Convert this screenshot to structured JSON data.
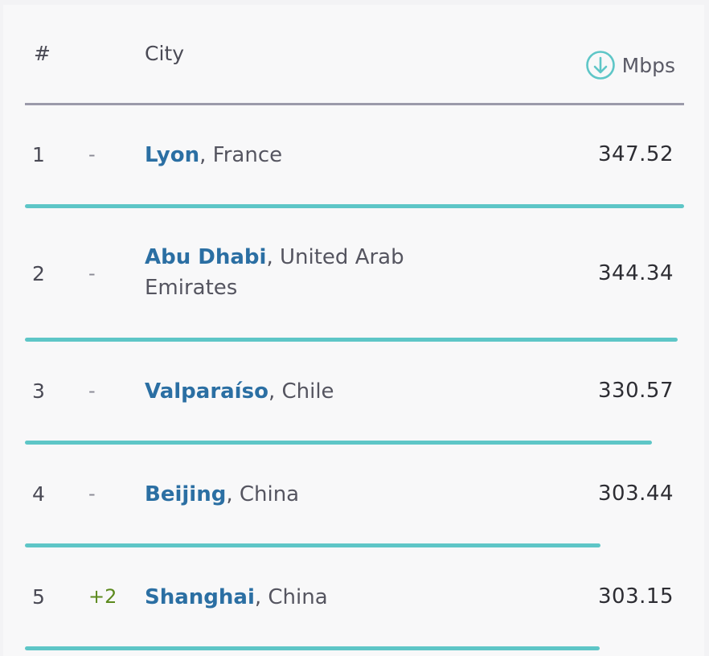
{
  "header": {
    "rank": "#",
    "city": "City",
    "speed_unit": "Mbps",
    "speed_icon": "download-arrow-icon"
  },
  "colors": {
    "bar": "#5ec6c7",
    "city_link": "#2b6fa3",
    "change_up": "#5c8a1e",
    "icon": "#5ec6c7"
  },
  "rows": [
    {
      "rank": "1",
      "change": "-",
      "city": "Lyon",
      "country": ", France",
      "speed": "347.52",
      "value": 347.52
    },
    {
      "rank": "2",
      "change": "-",
      "city": "Abu Dhabi",
      "country": ", United Arab Emirates",
      "speed": "344.34",
      "value": 344.34
    },
    {
      "rank": "3",
      "change": "-",
      "city": "Valparaíso",
      "country": ", Chile",
      "speed": "330.57",
      "value": 330.57
    },
    {
      "rank": "4",
      "change": "-",
      "city": "Beijing",
      "country": ", China",
      "speed": "303.44",
      "value": 303.44
    },
    {
      "rank": "5",
      "change": "+2",
      "city": "Shanghai",
      "country": ", China",
      "speed": "303.15",
      "value": 303.15
    }
  ]
}
